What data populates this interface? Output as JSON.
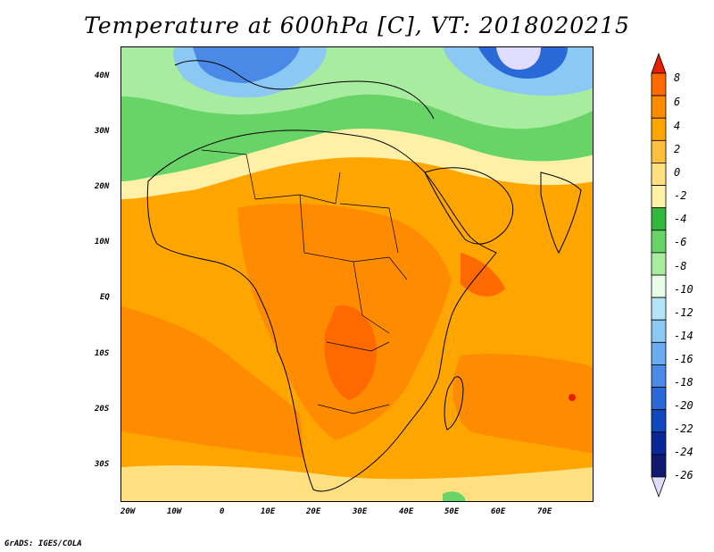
{
  "title": "Temperature at 600hPa [C], VT: 2018020215",
  "credit": "GrADS: IGES/COLA",
  "map": {
    "lon_labels": [
      "20W",
      "10W",
      "0",
      "10E",
      "20E",
      "30E",
      "40E",
      "50E",
      "60E",
      "70E"
    ],
    "lat_labels": [
      "40N",
      "30N",
      "20N",
      "10N",
      "EQ",
      "10S",
      "20S",
      "30S"
    ],
    "lon_range": [
      -23,
      80
    ],
    "lat_range": [
      -37,
      45
    ]
  },
  "colorbar": {
    "labels": [
      "8",
      "6",
      "4",
      "2",
      "0",
      "-2",
      "-4",
      "-6",
      "-8",
      "-10",
      "-12",
      "-14",
      "-16",
      "-18",
      "-20",
      "-22",
      "-24",
      "-26"
    ],
    "colors": [
      "#e61f00",
      "#ff6a00",
      "#ff8c00",
      "#ffa500",
      "#ffc040",
      "#ffe080",
      "#fff0a8",
      "#33b83c",
      "#68d468",
      "#a8eca0",
      "#e8fce8",
      "#b4e4f8",
      "#8cc8f4",
      "#6aaaf0",
      "#4a8ae6",
      "#2a6ad8",
      "#1048c0",
      "#082898",
      "#101870",
      "#e0dcff"
    ]
  },
  "colors": {
    "background": "#ffffff",
    "border": "#000000",
    "ocean_warm": "#ffa500",
    "land_hot": "#ff8c00"
  }
}
